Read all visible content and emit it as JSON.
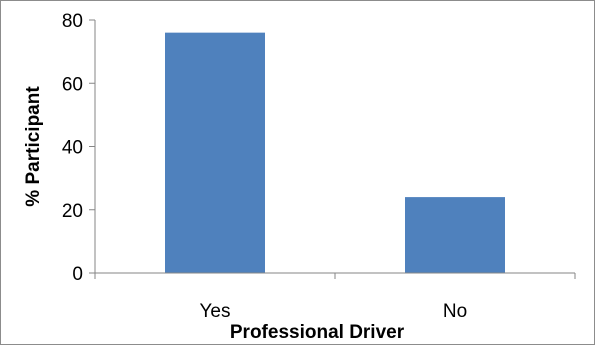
{
  "chart_data": {
    "type": "bar",
    "title": "",
    "categories": [
      "Yes",
      "No"
    ],
    "values": [
      76,
      24
    ],
    "xlabel": "Professional Driver",
    "ylabel": "% Participant",
    "ylim": [
      0,
      80
    ],
    "yticks": [
      0,
      20,
      40,
      60,
      80
    ],
    "grid": false,
    "legend": "none",
    "bar_color": "#4f81bd",
    "axis_color": "#868686"
  }
}
